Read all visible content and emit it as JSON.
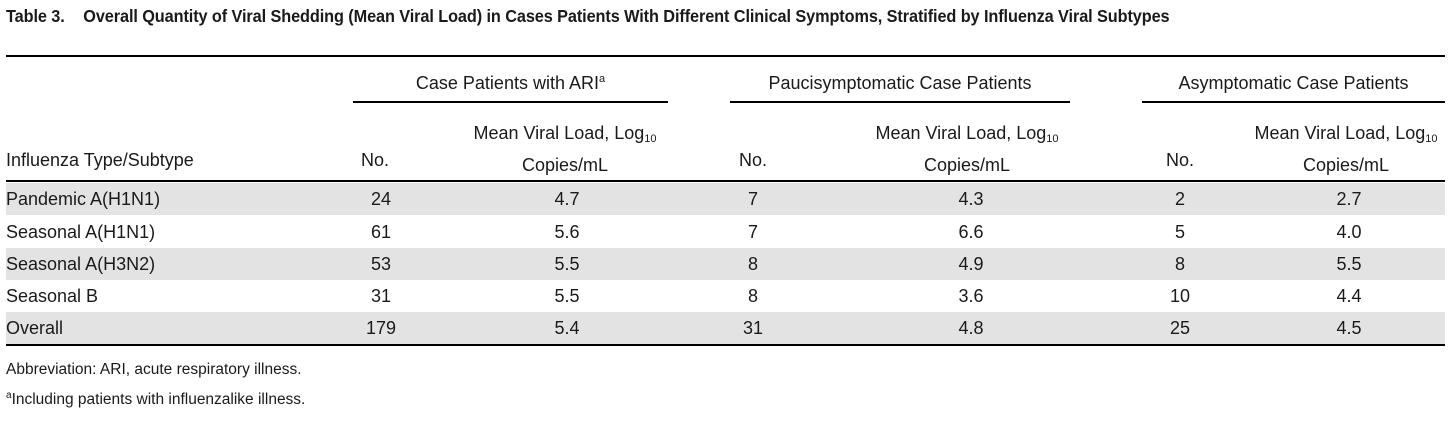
{
  "table": {
    "number": "Table 3.",
    "title": "Overall Quantity of Viral Shedding (Mean Viral Load) in Cases Patients With Different Clinical Symptoms, Stratified by Influenza Viral Subtypes",
    "groups": [
      {
        "label": "Case Patients with ARI",
        "sup": "a"
      },
      {
        "label": "Paucisymptomatic Case Patients",
        "sup": ""
      },
      {
        "label": "Asymptomatic Case Patients",
        "sup": ""
      }
    ],
    "headers": {
      "type_label": "Influenza Type/Subtype",
      "no_label": "No.",
      "load_line1": "Mean Viral Load, Log",
      "load_sub": "10",
      "load_line2": "Copies/mL"
    },
    "rows": [
      {
        "type": "Pandemic A(H1N1)",
        "ari_no": "24",
        "ari_load": "4.7",
        "pauci_no": "7",
        "pauci_load": "4.3",
        "asym_no": "2",
        "asym_load": "2.7"
      },
      {
        "type": "Seasonal A(H1N1)",
        "ari_no": "61",
        "ari_load": "5.6",
        "pauci_no": "7",
        "pauci_load": "6.6",
        "asym_no": "5",
        "asym_load": "4.0"
      },
      {
        "type": "Seasonal A(H3N2)",
        "ari_no": "53",
        "ari_load": "5.5",
        "pauci_no": "8",
        "pauci_load": "4.9",
        "asym_no": "8",
        "asym_load": "5.5"
      },
      {
        "type": "Seasonal B",
        "ari_no": "31",
        "ari_load": "5.5",
        "pauci_no": "8",
        "pauci_load": "3.6",
        "asym_no": "10",
        "asym_load": "4.4"
      },
      {
        "type": "Overall",
        "ari_no": "179",
        "ari_load": "5.4",
        "pauci_no": "31",
        "pauci_load": "4.8",
        "asym_no": "25",
        "asym_load": "4.5"
      }
    ],
    "footnotes": {
      "abbreviation": "Abbreviation: ARI, acute respiratory illness.",
      "a_marker": "a",
      "a_text": "Including patients with influenzalike illness."
    }
  }
}
